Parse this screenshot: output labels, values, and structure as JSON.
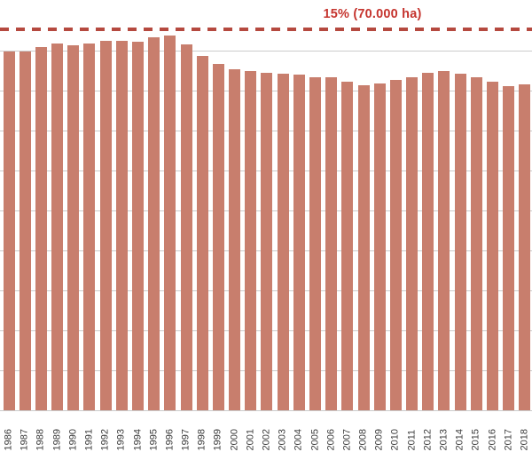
{
  "chart_data": {
    "type": "bar",
    "title": "",
    "xlabel": "",
    "ylabel": "",
    "categories": [
      "1986",
      "1987",
      "1988",
      "1989",
      "1990",
      "1991",
      "1992",
      "1993",
      "1994",
      "1995",
      "1996",
      "1997",
      "1998",
      "1999",
      "2000",
      "2001",
      "2002",
      "2003",
      "2004",
      "2005",
      "2006",
      "2007",
      "2008",
      "2009",
      "2010",
      "2011",
      "2012",
      "2013",
      "2014",
      "2015",
      "2016",
      "2017",
      "2018"
    ],
    "values": [
      14.13,
      14.13,
      14.3,
      14.44,
      14.37,
      14.44,
      14.55,
      14.55,
      14.51,
      14.69,
      14.76,
      14.41,
      13.95,
      13.64,
      13.43,
      13.36,
      13.29,
      13.25,
      13.22,
      13.11,
      13.11,
      12.94,
      12.8,
      12.87,
      13.01,
      13.11,
      13.29,
      13.36,
      13.25,
      13.11,
      12.94,
      12.76,
      12.83
    ],
    "unit": "percent",
    "target_line": {
      "value": 15,
      "label": "15% (70.000 ha)"
    },
    "ylim": [
      0,
      16.15
    ],
    "grid": true,
    "gridline_count": 10,
    "gridline_value_interval": 1.573,
    "legend": "none",
    "x_tick_rotation": -90
  },
  "colors": {
    "bar": "#c87e6d",
    "target_line": "#b5493f",
    "target_label": "#c5342e",
    "gridline": "#cbcbcb",
    "tick_label": "#3c3c3c",
    "background": "#ffffff"
  }
}
